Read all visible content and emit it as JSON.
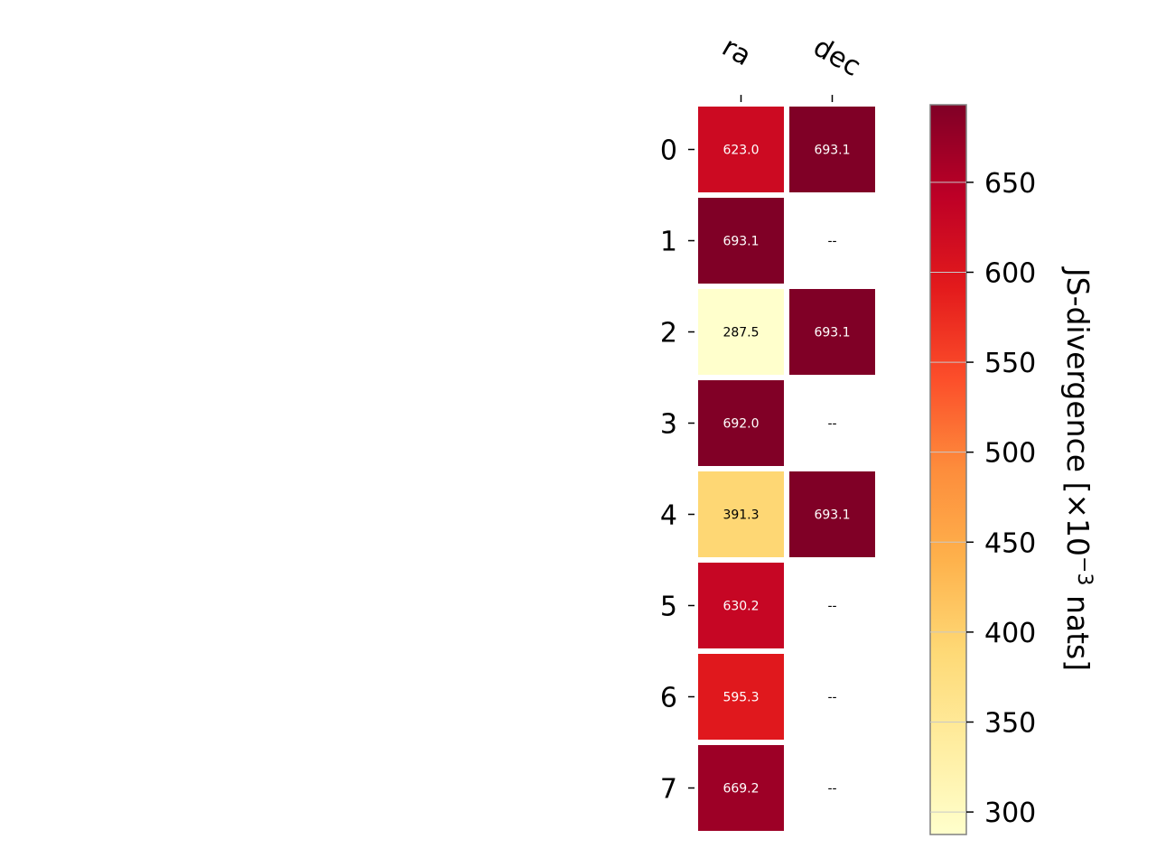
{
  "chart_data": {
    "type": "heatmap",
    "title": "",
    "columns": [
      "ra",
      "dec"
    ],
    "rows": [
      "0",
      "1",
      "2",
      "3",
      "4",
      "5",
      "6",
      "7"
    ],
    "values": [
      [
        623.0,
        693.1
      ],
      [
        693.1,
        null
      ],
      [
        287.5,
        693.1
      ],
      [
        692.0,
        null
      ],
      [
        391.3,
        693.1
      ],
      [
        630.2,
        null
      ],
      [
        595.3,
        null
      ],
      [
        669.2,
        null
      ]
    ],
    "cell_labels": [
      [
        "623.0",
        "693.1"
      ],
      [
        "693.1",
        "--"
      ],
      [
        "287.5",
        "693.1"
      ],
      [
        "692.0",
        "--"
      ],
      [
        "391.3",
        "693.1"
      ],
      [
        "630.2",
        "--"
      ],
      [
        "595.3",
        "--"
      ],
      [
        "669.2",
        "--"
      ]
    ],
    "missing_label": "--",
    "colorbar": {
      "label": "JS-divergence [×10",
      "label_exponent": "−3",
      "label_suffix": " nats]",
      "range": [
        287.5,
        693.1
      ],
      "ticks": [
        300,
        350,
        400,
        450,
        500,
        550,
        600,
        650
      ],
      "tick_labels": [
        "300",
        "350",
        "400",
        "450",
        "500",
        "550",
        "600",
        "650"
      ]
    },
    "colormap": "YlOrRd",
    "grid": false,
    "legend": "none"
  }
}
